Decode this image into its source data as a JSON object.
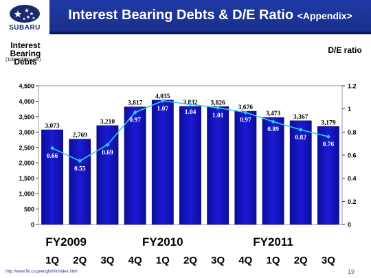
{
  "header": {
    "logo_text": "SUBARU",
    "title": "Interest Bearing Debts & D/E Ratio",
    "title_suffix": "<Appendix>"
  },
  "footer": {
    "url": "http://www.fhi.co.jp/english/ir/index.html",
    "page_number": "19"
  },
  "colors": {
    "title_bar": "#1f3aa6",
    "bar_fill": "#1a1ad6",
    "line": "#33ccee",
    "logo_stars": "#1b2a6b"
  },
  "chart_data": {
    "type": "bar",
    "categories": [
      "1Q",
      "2Q",
      "3Q",
      "4Q",
      "1Q",
      "2Q",
      "3Q",
      "4Q",
      "1Q",
      "2Q",
      "3Q"
    ],
    "groups": [
      {
        "label": "FY2009",
        "categories": [
          "1Q",
          "2Q",
          "3Q"
        ]
      },
      {
        "label": "FY2010",
        "categories": [
          "4Q",
          "1Q",
          "2Q",
          "3Q"
        ]
      },
      {
        "label": "FY2011",
        "categories": [
          "4Q",
          "1Q",
          "2Q",
          "3Q"
        ]
      }
    ],
    "series": [
      {
        "type": "bar",
        "axis": "left",
        "values": [
          3073,
          2769,
          3210,
          3817,
          4035,
          3832,
          3826,
          3676,
          3473,
          3367,
          3179
        ],
        "labels": [
          "3,073",
          "2,769",
          "3,210",
          "3,817",
          "4,035",
          "3,832",
          "3,826",
          "3,676",
          "3,473",
          "3,367",
          "3,179"
        ]
      },
      {
        "type": "line",
        "axis": "right",
        "values": [
          0.66,
          0.55,
          0.69,
          0.97,
          1.07,
          1.04,
          1.01,
          0.97,
          0.89,
          0.82,
          0.76
        ],
        "labels": [
          "0.66",
          "0.55",
          "0.69",
          "0.97",
          "1.07",
          "1.04",
          "1.01",
          "0.97",
          "0.89",
          "0.82",
          "0.76"
        ]
      }
    ],
    "ylabel": "Interest Bearing Debts",
    "ylabel_unit": "(100 million yen)",
    "y2label": "D/E ratio",
    "ylim": [
      0,
      4500
    ],
    "y2lim": [
      0,
      1.2
    ],
    "yticks": [
      "0",
      "500",
      "1,000",
      "1,500",
      "2,000",
      "2,500",
      "3,000",
      "3,500",
      "4,000",
      "4,500"
    ],
    "y2ticks": [
      "0",
      "0.2",
      "0.4",
      "0.6",
      "0.8",
      "1",
      "1.2"
    ],
    "grid": false,
    "legend": "none"
  }
}
